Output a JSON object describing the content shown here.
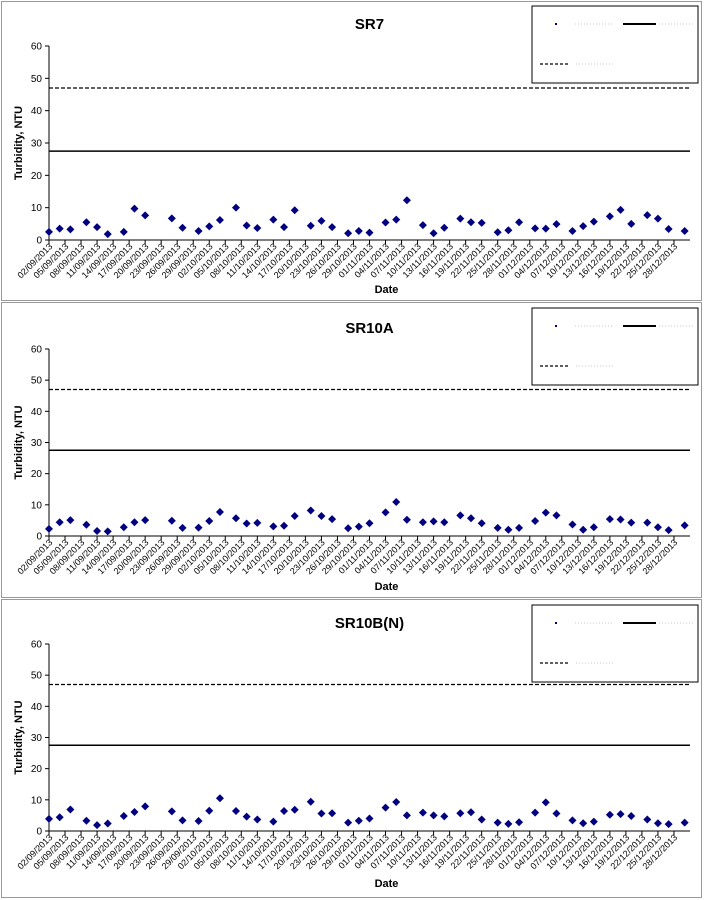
{
  "chart_data": [
    {
      "type": "scatter",
      "title": "SR7",
      "xlabel": "Date",
      "ylabel": "Turbidity, NTU",
      "ylim": [
        0,
        60
      ],
      "yticks": [
        "0",
        "10",
        "20",
        "30",
        "40",
        "50",
        "60"
      ],
      "xtick_labels": [
        "02/09/2013",
        "05/09/2013",
        "08/09/2013",
        "11/09/2013",
        "14/09/2013",
        "17/09/2013",
        "20/09/2013",
        "23/09/2013",
        "26/09/2013",
        "29/09/2013",
        "02/10/2013",
        "05/10/2013",
        "08/10/2013",
        "11/10/2013",
        "14/10/2013",
        "17/10/2013",
        "20/10/2013",
        "23/10/2013",
        "26/10/2013",
        "29/10/2013",
        "01/11/2013",
        "04/11/2013",
        "07/11/2013",
        "10/11/2013",
        "13/11/2013",
        "16/11/2013",
        "19/11/2013",
        "22/11/2013",
        "25/11/2013",
        "28/11/2013",
        "01/12/2013",
        "04/12/2013",
        "07/12/2013",
        "10/12/2013",
        "13/12/2013",
        "16/12/2013",
        "19/12/2013",
        "22/12/2013",
        "25/12/2013",
        "28/12/2013"
      ],
      "grid": false,
      "legend_position": "top-right",
      "x_range": [
        "02/09/2013",
        "31/12/2013"
      ],
      "reference_lines": [
        {
          "style": "solid",
          "y": 27.5
        },
        {
          "style": "dashed",
          "y": 47
        }
      ],
      "series": [
        {
          "color": "#000080",
          "marker": "diamond",
          "points": [
            [
              "02/09/2013",
              2.5
            ],
            [
              "04/09/2013",
              3.5
            ],
            [
              "06/09/2013",
              3.3
            ],
            [
              "09/09/2013",
              5.5
            ],
            [
              "11/09/2013",
              4.0
            ],
            [
              "13/09/2013",
              1.8
            ],
            [
              "16/09/2013",
              2.5
            ],
            [
              "18/09/2013",
              9.7
            ],
            [
              "20/09/2013",
              7.6
            ],
            [
              "25/09/2013",
              6.7
            ],
            [
              "27/09/2013",
              3.8
            ],
            [
              "30/09/2013",
              2.8
            ],
            [
              "02/10/2013",
              4.2
            ],
            [
              "04/10/2013",
              6.2
            ],
            [
              "07/10/2013",
              10.0
            ],
            [
              "09/10/2013",
              4.5
            ],
            [
              "11/10/2013",
              3.7
            ],
            [
              "14/10/2013",
              6.3
            ],
            [
              "16/10/2013",
              4.0
            ],
            [
              "18/10/2013",
              9.2
            ],
            [
              "21/10/2013",
              4.4
            ],
            [
              "23/10/2013",
              5.9
            ],
            [
              "25/10/2013",
              4.0
            ],
            [
              "28/10/2013",
              2.1
            ],
            [
              "30/10/2013",
              2.8
            ],
            [
              "01/11/2013",
              2.3
            ],
            [
              "04/11/2013",
              5.4
            ],
            [
              "06/11/2013",
              6.3
            ],
            [
              "08/11/2013",
              12.3
            ],
            [
              "11/11/2013",
              4.6
            ],
            [
              "13/11/2013",
              2.1
            ],
            [
              "15/11/2013",
              3.8
            ],
            [
              "18/11/2013",
              6.6
            ],
            [
              "20/11/2013",
              5.5
            ],
            [
              "22/11/2013",
              5.3
            ],
            [
              "25/11/2013",
              2.4
            ],
            [
              "27/11/2013",
              3.0
            ],
            [
              "29/11/2013",
              5.5
            ],
            [
              "02/12/2013",
              3.6
            ],
            [
              "04/12/2013",
              3.5
            ],
            [
              "06/12/2013",
              4.9
            ],
            [
              "09/12/2013",
              2.8
            ],
            [
              "11/12/2013",
              4.3
            ],
            [
              "13/12/2013",
              5.7
            ],
            [
              "16/12/2013",
              7.3
            ],
            [
              "18/12/2013",
              9.3
            ],
            [
              "20/12/2013",
              5.0
            ],
            [
              "23/12/2013",
              7.7
            ],
            [
              "25/12/2013",
              6.6
            ],
            [
              "27/12/2013",
              3.4
            ],
            [
              "30/12/2013",
              2.8
            ]
          ]
        }
      ]
    },
    {
      "type": "scatter",
      "title": "SR10A",
      "xlabel": "Date",
      "ylabel": "Turbidity, NTU",
      "ylim": [
        0,
        60
      ],
      "yticks": [
        "0",
        "10",
        "20",
        "30",
        "40",
        "50",
        "60"
      ],
      "xtick_labels": [
        "02/09/2013",
        "05/09/2013",
        "08/09/2013",
        "11/09/2013",
        "14/09/2013",
        "17/09/2013",
        "20/09/2013",
        "23/09/2013",
        "26/09/2013",
        "29/09/2013",
        "02/10/2013",
        "05/10/2013",
        "08/10/2013",
        "11/10/2013",
        "14/10/2013",
        "17/10/2013",
        "20/10/2013",
        "23/10/2013",
        "26/10/2013",
        "29/10/2013",
        "01/11/2013",
        "04/11/2013",
        "07/11/2013",
        "10/11/2013",
        "13/11/2013",
        "16/11/2013",
        "19/11/2013",
        "22/11/2013",
        "25/11/2013",
        "28/11/2013",
        "01/12/2013",
        "04/12/2013",
        "07/12/2013",
        "10/12/2013",
        "13/12/2013",
        "16/12/2013",
        "19/12/2013",
        "22/12/2013",
        "25/12/2013",
        "28/12/2013"
      ],
      "grid": false,
      "legend_position": "top-right",
      "x_range": [
        "02/09/2013",
        "31/12/2013"
      ],
      "reference_lines": [
        {
          "style": "solid",
          "y": 27.5
        },
        {
          "style": "dashed",
          "y": 47
        }
      ],
      "series": [
        {
          "color": "#000080",
          "marker": "diamond",
          "points": [
            [
              "02/09/2013",
              2.3
            ],
            [
              "04/09/2013",
              4.4
            ],
            [
              "06/09/2013",
              5.1
            ],
            [
              "09/09/2013",
              3.6
            ],
            [
              "11/09/2013",
              1.6
            ],
            [
              "13/09/2013",
              1.5
            ],
            [
              "16/09/2013",
              2.8
            ],
            [
              "18/09/2013",
              4.4
            ],
            [
              "20/09/2013",
              5.1
            ],
            [
              "25/09/2013",
              4.9
            ],
            [
              "27/09/2013",
              2.6
            ],
            [
              "30/09/2013",
              2.7
            ],
            [
              "02/10/2013",
              4.8
            ],
            [
              "04/10/2013",
              7.7
            ],
            [
              "07/10/2013",
              5.7
            ],
            [
              "09/10/2013",
              4.0
            ],
            [
              "11/10/2013",
              4.2
            ],
            [
              "14/10/2013",
              3.1
            ],
            [
              "16/10/2013",
              3.3
            ],
            [
              "18/10/2013",
              6.4
            ],
            [
              "21/10/2013",
              8.2
            ],
            [
              "23/10/2013",
              6.4
            ],
            [
              "25/10/2013",
              5.4
            ],
            [
              "28/10/2013",
              2.5
            ],
            [
              "30/10/2013",
              3.0
            ],
            [
              "01/11/2013",
              4.1
            ],
            [
              "04/11/2013",
              7.6
            ],
            [
              "06/11/2013",
              10.9
            ],
            [
              "08/11/2013",
              5.2
            ],
            [
              "11/11/2013",
              4.4
            ],
            [
              "13/11/2013",
              4.7
            ],
            [
              "15/11/2013",
              4.4
            ],
            [
              "18/11/2013",
              6.6
            ],
            [
              "20/11/2013",
              5.7
            ],
            [
              "22/11/2013",
              4.1
            ],
            [
              "25/11/2013",
              2.6
            ],
            [
              "27/11/2013",
              2.0
            ],
            [
              "29/11/2013",
              2.6
            ],
            [
              "02/12/2013",
              4.8
            ],
            [
              "04/12/2013",
              7.5
            ],
            [
              "06/12/2013",
              6.6
            ],
            [
              "09/12/2013",
              3.7
            ],
            [
              "11/12/2013",
              2.0
            ],
            [
              "13/12/2013",
              2.8
            ],
            [
              "16/12/2013",
              5.4
            ],
            [
              "18/12/2013",
              5.3
            ],
            [
              "20/12/2013",
              4.3
            ],
            [
              "23/12/2013",
              4.3
            ],
            [
              "25/12/2013",
              2.8
            ],
            [
              "27/12/2013",
              1.9
            ],
            [
              "30/12/2013",
              3.4
            ]
          ]
        }
      ]
    },
    {
      "type": "scatter",
      "title": "SR10B(N)",
      "xlabel": "Date",
      "ylabel": "Turbidity, NTU",
      "ylim": [
        0,
        60
      ],
      "yticks": [
        "0",
        "10",
        "20",
        "30",
        "40",
        "50",
        "60"
      ],
      "xtick_labels": [
        "02/09/2013",
        "05/09/2013",
        "08/09/2013",
        "11/09/2013",
        "14/09/2013",
        "17/09/2013",
        "20/09/2013",
        "23/09/2013",
        "26/09/2013",
        "29/09/2013",
        "02/10/2013",
        "05/10/2013",
        "08/10/2013",
        "11/10/2013",
        "14/10/2013",
        "17/10/2013",
        "20/10/2013",
        "23/10/2013",
        "26/10/2013",
        "29/10/2013",
        "01/11/2013",
        "04/11/2013",
        "07/11/2013",
        "10/11/2013",
        "13/11/2013",
        "16/11/2013",
        "19/11/2013",
        "22/11/2013",
        "25/11/2013",
        "28/11/2013",
        "01/12/2013",
        "04/12/2013",
        "07/12/2013",
        "10/12/2013",
        "13/12/2013",
        "16/12/2013",
        "19/12/2013",
        "22/12/2013",
        "25/12/2013",
        "28/12/2013"
      ],
      "grid": false,
      "legend_position": "top-right",
      "x_range": [
        "02/09/2013",
        "31/12/2013"
      ],
      "reference_lines": [
        {
          "style": "solid",
          "y": 27.5
        },
        {
          "style": "dashed",
          "y": 47
        }
      ],
      "series": [
        {
          "color": "#000080",
          "marker": "diamond",
          "points": [
            [
              "02/09/2013",
              3.9
            ],
            [
              "04/09/2013",
              4.4
            ],
            [
              "06/09/2013",
              6.9
            ],
            [
              "09/09/2013",
              3.3
            ],
            [
              "11/09/2013",
              1.9
            ],
            [
              "13/09/2013",
              2.4
            ],
            [
              "16/09/2013",
              4.8
            ],
            [
              "18/09/2013",
              6.1
            ],
            [
              "20/09/2013",
              7.9
            ],
            [
              "25/09/2013",
              6.3
            ],
            [
              "27/09/2013",
              3.4
            ],
            [
              "30/09/2013",
              3.2
            ],
            [
              "02/10/2013",
              6.5
            ],
            [
              "04/10/2013",
              10.5
            ],
            [
              "07/10/2013",
              6.4
            ],
            [
              "09/10/2013",
              4.6
            ],
            [
              "11/10/2013",
              3.7
            ],
            [
              "14/10/2013",
              3.0
            ],
            [
              "16/10/2013",
              6.4
            ],
            [
              "18/10/2013",
              6.8
            ],
            [
              "21/10/2013",
              9.4
            ],
            [
              "23/10/2013",
              5.6
            ],
            [
              "25/10/2013",
              5.7
            ],
            [
              "28/10/2013",
              2.7
            ],
            [
              "30/10/2013",
              3.3
            ],
            [
              "01/11/2013",
              4.0
            ],
            [
              "04/11/2013",
              7.5
            ],
            [
              "06/11/2013",
              9.3
            ],
            [
              "08/11/2013",
              5.0
            ],
            [
              "11/11/2013",
              5.9
            ],
            [
              "13/11/2013",
              5.0
            ],
            [
              "15/11/2013",
              4.7
            ],
            [
              "18/11/2013",
              5.7
            ],
            [
              "20/11/2013",
              6.0
            ],
            [
              "22/11/2013",
              3.7
            ],
            [
              "25/11/2013",
              2.7
            ],
            [
              "27/11/2013",
              2.3
            ],
            [
              "29/11/2013",
              2.8
            ],
            [
              "02/12/2013",
              5.9
            ],
            [
              "04/12/2013",
              9.2
            ],
            [
              "06/12/2013",
              5.6
            ],
            [
              "09/12/2013",
              3.4
            ],
            [
              "11/12/2013",
              2.5
            ],
            [
              "13/12/2013",
              3.0
            ],
            [
              "16/12/2013",
              5.2
            ],
            [
              "18/12/2013",
              5.4
            ],
            [
              "20/12/2013",
              4.8
            ],
            [
              "23/12/2013",
              3.7
            ],
            [
              "25/12/2013",
              2.5
            ],
            [
              "27/12/2013",
              2.2
            ],
            [
              "30/12/2013",
              2.7
            ]
          ]
        }
      ]
    }
  ]
}
